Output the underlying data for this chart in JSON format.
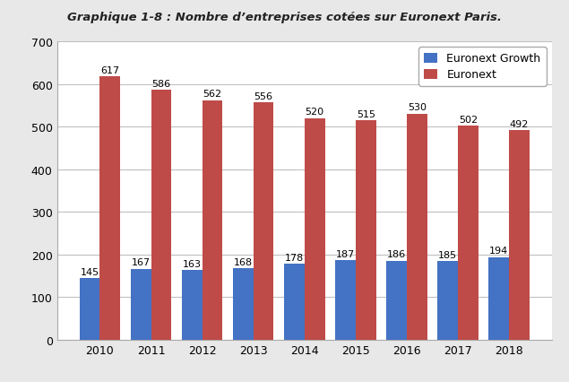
{
  "title": "Graphique 1-8 : Nombre d’entreprises cotées sur Euronext Paris.",
  "years": [
    2010,
    2011,
    2012,
    2013,
    2014,
    2015,
    2016,
    2017,
    2018
  ],
  "euronext_growth": [
    145,
    167,
    163,
    168,
    178,
    187,
    186,
    185,
    194
  ],
  "euronext": [
    617,
    586,
    562,
    556,
    520,
    515,
    530,
    502,
    492
  ],
  "color_growth": "#4472C4",
  "color_euronext": "#BE4B48",
  "legend_growth": "Euronext Growth",
  "legend_euronext": "Euronext",
  "ylim": [
    0,
    700
  ],
  "yticks": [
    0,
    100,
    200,
    300,
    400,
    500,
    600,
    700
  ],
  "bar_width": 0.4,
  "title_fontsize": 9.5,
  "tick_fontsize": 9,
  "label_fontsize": 8,
  "outer_bg": "#E8E8E8",
  "inner_bg": "#FFFFFF",
  "grid_color": "#C0C0C0"
}
